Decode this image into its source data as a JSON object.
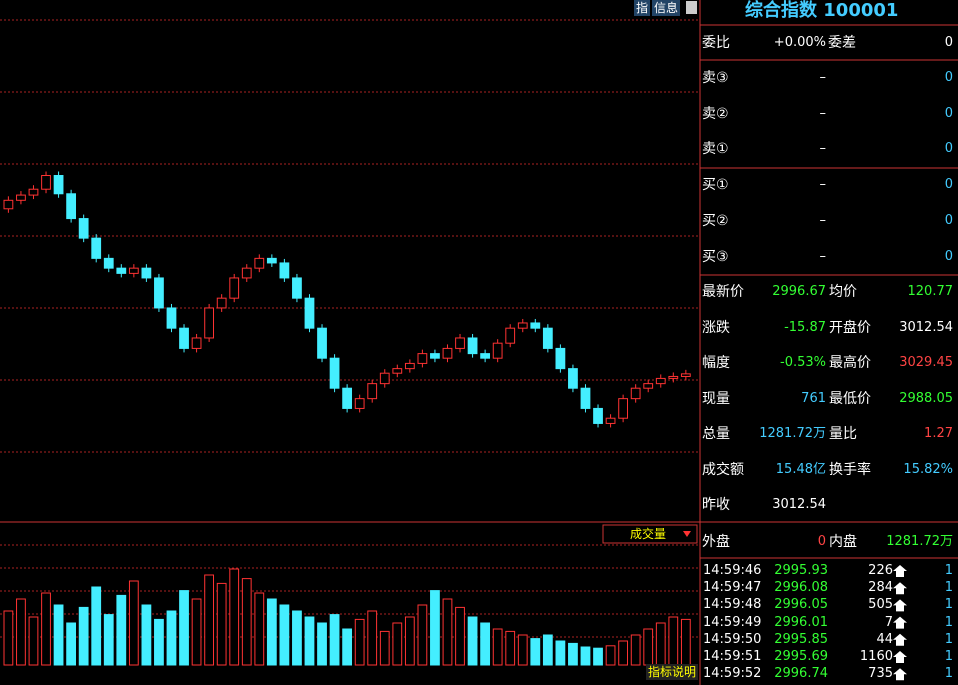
{
  "header": {
    "title": "综合指数 100001",
    "buttons": [
      "指",
      "信息"
    ]
  },
  "price_chart": {
    "ylim": [
      2974.3,
      3054.0
    ],
    "open": [
      3022.0,
      3023.3,
      3024.1,
      3025.0,
      3027.1,
      3024.3,
      3020.5,
      3017.5,
      3014.4,
      3012.9,
      3012.1,
      3012.9,
      3011.4,
      3006.8,
      3003.7,
      3000.6,
      3002.2,
      3006.8,
      3008.3,
      3011.4,
      3012.9,
      3014.4,
      3013.7,
      3011.4,
      3008.3,
      3003.7,
      2999.1,
      2994.5,
      2991.4,
      2992.9,
      2995.2,
      2996.8,
      2997.5,
      2998.3,
      2999.8,
      2999.1,
      3000.6,
      3002.2,
      2999.8,
      2999.1,
      3001.4,
      3003.7,
      3004.5,
      3003.7,
      3000.6,
      2997.5,
      2994.5,
      2991.4,
      2989.1,
      2989.9,
      2992.9,
      2994.5,
      2995.2,
      2996.0,
      2996.3
    ],
    "close": [
      3023.3,
      3024.1,
      3025.0,
      3027.1,
      3024.3,
      3020.5,
      3017.5,
      3014.4,
      3012.9,
      3012.1,
      3012.9,
      3011.4,
      3006.8,
      3003.7,
      3000.6,
      3002.2,
      3006.8,
      3008.3,
      3011.4,
      3012.9,
      3014.4,
      3013.7,
      3011.4,
      3008.3,
      3003.7,
      2999.1,
      2994.5,
      2991.4,
      2992.9,
      2995.2,
      2996.8,
      2997.5,
      2998.3,
      2999.8,
      2999.1,
      3000.6,
      3002.2,
      2999.8,
      2999.1,
      3001.4,
      3003.7,
      3004.5,
      3003.7,
      3000.6,
      2997.5,
      2994.5,
      2991.4,
      2989.1,
      2989.9,
      2992.9,
      2994.5,
      2995.2,
      2996.0,
      2996.3,
      2996.7
    ]
  },
  "volume_chart": {
    "label": "成交量",
    "note": "指标说明",
    "ylim": [
      0,
      100
    ],
    "values": [
      45,
      55,
      40,
      60,
      50,
      35,
      48,
      65,
      42,
      58,
      70,
      50,
      38,
      45,
      62,
      55,
      75,
      68,
      80,
      72,
      60,
      55,
      50,
      45,
      40,
      35,
      42,
      30,
      38,
      45,
      28,
      35,
      40,
      50,
      62,
      55,
      48,
      40,
      35,
      30,
      28,
      25,
      22,
      25,
      20,
      18,
      15,
      14,
      16,
      20,
      25,
      30,
      35,
      40,
      38
    ]
  },
  "quote": {
    "ratio": {
      "label": "委比",
      "value": "+0.00%",
      "label2": "委差",
      "value2": "0"
    },
    "book": [
      [
        "卖③",
        "–",
        "0"
      ],
      [
        "卖②",
        "–",
        "0"
      ],
      [
        "卖①",
        "–",
        "0"
      ],
      [
        "买①",
        "–",
        "0"
      ],
      [
        "买②",
        "–",
        "0"
      ],
      [
        "买③",
        "–",
        "0"
      ]
    ],
    "rows": [
      [
        "最新价",
        "2996.67",
        "均价",
        "120.77"
      ],
      [
        "涨跌",
        "-15.87",
        "开盘价",
        "3012.54"
      ],
      [
        "幅度",
        "-0.53%",
        "最高价",
        "3029.45"
      ],
      [
        "现量",
        "761",
        "最低价",
        "2988.05"
      ],
      [
        "总量",
        "1281.72万",
        "量比",
        "1.27"
      ],
      [
        "成交额",
        "15.48亿",
        "换手率",
        "15.82%"
      ],
      [
        "昨收",
        "3012.54"
      ]
    ],
    "outer": [
      "外盘",
      "0",
      "内盘",
      "1281.72万"
    ]
  },
  "ticks": [
    [
      "14:59:46",
      "2995.93",
      "226",
      "1"
    ],
    [
      "14:59:47",
      "2996.08",
      "284",
      "1"
    ],
    [
      "14:59:48",
      "2996.05",
      "505",
      "1"
    ],
    [
      "14:59:49",
      "2996.01",
      "7",
      "1"
    ],
    [
      "14:59:50",
      "2995.85",
      "44",
      "1"
    ],
    [
      "14:59:51",
      "2995.69",
      "1160",
      "1"
    ],
    [
      "14:59:52",
      "2996.74",
      "735",
      "1"
    ]
  ]
}
